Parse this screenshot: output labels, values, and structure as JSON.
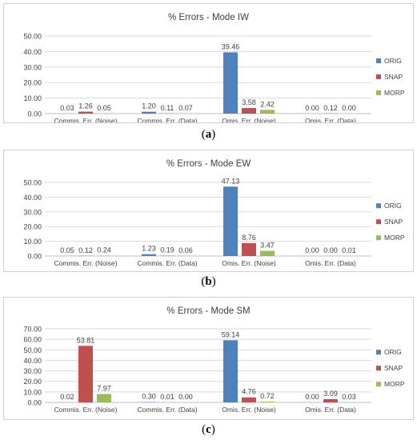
{
  "colors": {
    "ORIG": "#4f81bd",
    "SNAP": "#c0504d",
    "MORP": "#9bbb59",
    "grid": "#d9d9d9",
    "axis": "#bfbfbf",
    "text": "#404040"
  },
  "panels": [
    {
      "caption_open": "(",
      "caption_letter": "a",
      "caption_close": ")"
    },
    {
      "caption_open": "(",
      "caption_letter": "b",
      "caption_close": ")"
    },
    {
      "caption_open": "(",
      "caption_letter": "c",
      "caption_close": ")"
    }
  ],
  "chart_data": [
    {
      "type": "bar",
      "title": "% Errors - Mode IW",
      "categories": [
        "Commis. Err. (Noise)",
        "Commis. Err. (Data)",
        "Omis. Err. (Noise)",
        "Omis. Err. (Data)"
      ],
      "series": [
        {
          "name": "ORIG",
          "values": [
            0.03,
            1.2,
            39.46,
            0.0
          ],
          "labels": [
            "0.03",
            "1.20",
            "39.46",
            "0.00"
          ]
        },
        {
          "name": "SNAP",
          "values": [
            1.26,
            0.11,
            3.58,
            0.12
          ],
          "labels": [
            "1.26",
            "0.11",
            "3.58",
            "0.12"
          ]
        },
        {
          "name": "MORP",
          "values": [
            0.05,
            0.07,
            2.42,
            0.0
          ],
          "labels": [
            "0.05",
            "0.07",
            "2.42",
            "0.00"
          ]
        }
      ],
      "ylim": [
        0,
        50
      ],
      "yticks": [
        "0.00",
        "10.00",
        "20.00",
        "30.00",
        "40.00",
        "50.00"
      ],
      "grid": true,
      "legend": "right"
    },
    {
      "type": "bar",
      "title": "% Errors - Mode EW",
      "categories": [
        "Commis. Err. (Noise)",
        "Commis. Err. (Data)",
        "Omis. Err. (Noise)",
        "Omis. Err. (Data)"
      ],
      "series": [
        {
          "name": "ORIG",
          "values": [
            0.05,
            1.23,
            47.13,
            0.0
          ],
          "labels": [
            "0.05",
            "1.23",
            "47.13",
            "0.00"
          ]
        },
        {
          "name": "SNAP",
          "values": [
            0.12,
            0.19,
            8.76,
            0.0
          ],
          "labels": [
            "0.12",
            "0.19",
            "8.76",
            "0.00"
          ]
        },
        {
          "name": "MORP",
          "values": [
            0.24,
            0.06,
            3.47,
            0.01
          ],
          "labels": [
            "0.24",
            "0.06",
            "3.47",
            "0.01"
          ]
        }
      ],
      "ylim": [
        0,
        50
      ],
      "yticks": [
        "0.00",
        "10.00",
        "20.00",
        "30.00",
        "40.00",
        "50.00"
      ],
      "grid": true,
      "legend": "right"
    },
    {
      "type": "bar",
      "title": "% Errors - Mode SM",
      "categories": [
        "Commis. Err. (Noise)",
        "Commis. Err. (Data)",
        "Omis. Err. (Noise)",
        "Omis. Err. (Data)"
      ],
      "series": [
        {
          "name": "ORIG",
          "values": [
            0.02,
            0.3,
            59.14,
            0.0
          ],
          "labels": [
            "0.02",
            "0.30",
            "59.14",
            "0.00"
          ]
        },
        {
          "name": "SNAP",
          "values": [
            53.81,
            0.01,
            4.76,
            3.09
          ],
          "labels": [
            "53.81",
            "0.01",
            "4.76",
            "3.09"
          ]
        },
        {
          "name": "MORP",
          "values": [
            7.97,
            0.0,
            0.72,
            0.03
          ],
          "labels": [
            "7.97",
            "0.00",
            "0.72",
            "0.03"
          ]
        }
      ],
      "ylim": [
        0,
        70
      ],
      "yticks": [
        "0.00",
        "10.00",
        "20.00",
        "30.00",
        "40.00",
        "50.00",
        "60.00",
        "70.00"
      ],
      "grid": true,
      "legend": "right"
    }
  ]
}
